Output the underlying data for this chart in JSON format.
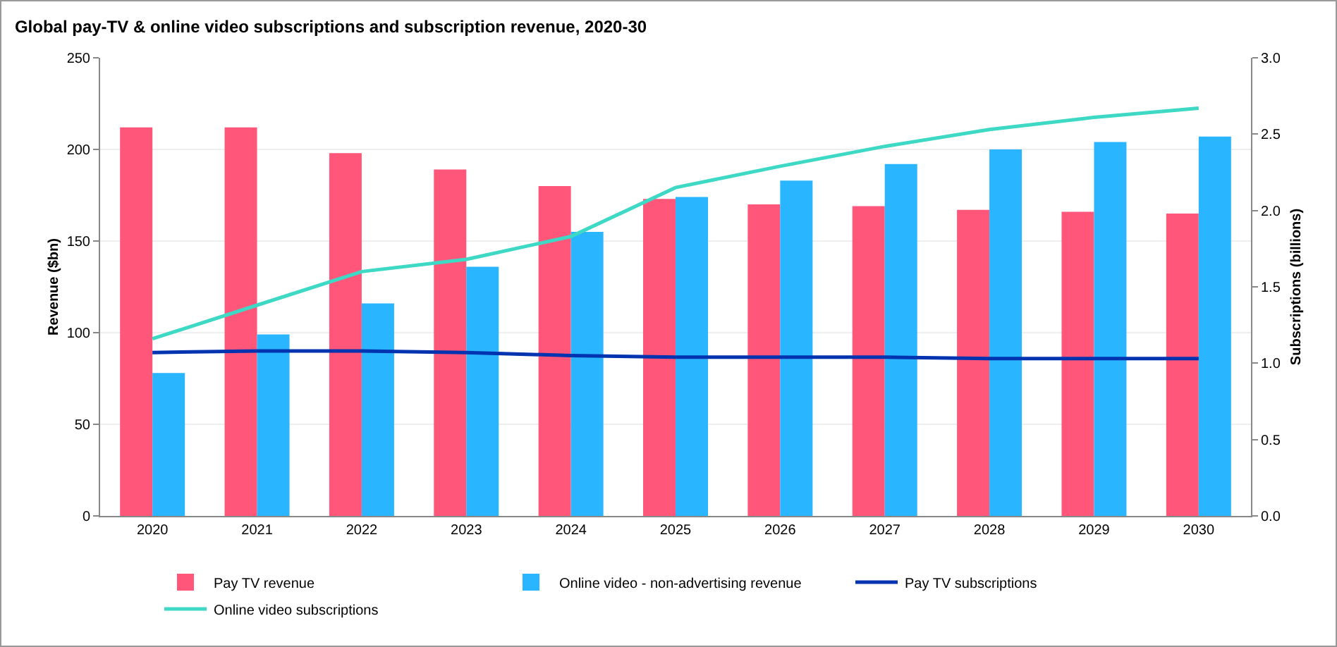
{
  "chart_data": {
    "type": "bar",
    "title": "Global pay-TV & online video subscriptions and subscription revenue, 2020-30",
    "ylabel": "Revenue ($bn)",
    "y2label": "Subscriptions (billions)",
    "categories": [
      "2020",
      "2021",
      "2022",
      "2023",
      "2024",
      "2025",
      "2026",
      "2027",
      "2028",
      "2029",
      "2030"
    ],
    "series": [
      {
        "name": "Pay TV revenue",
        "color": "#ff567a",
        "values": [
          212,
          212,
          198,
          189,
          180,
          173,
          170,
          169,
          167,
          166,
          165
        ]
      },
      {
        "name": "Online video - non-advertising revenue",
        "color": "#29b5ff",
        "values": [
          78,
          99,
          116,
          136,
          155,
          174,
          183,
          192,
          200,
          204,
          207
        ]
      },
      {
        "name": "Pay TV subscriptions",
        "type": "line",
        "axis": "y2",
        "color": "#0033b0",
        "values": [
          1.07,
          1.08,
          1.08,
          1.07,
          1.05,
          1.04,
          1.04,
          1.04,
          1.03,
          1.03,
          1.03
        ]
      },
      {
        "name": "Online video subscriptions",
        "type": "line",
        "axis": "y2",
        "color": "#3dd9c5",
        "values": [
          1.16,
          1.38,
          1.6,
          1.68,
          1.83,
          2.15,
          2.29,
          2.42,
          2.53,
          2.61,
          2.67
        ]
      }
    ],
    "ylim": [
      0,
      250
    ],
    "yticks": [
      0,
      50,
      100,
      150,
      200,
      250
    ],
    "y2lim": [
      0,
      3
    ],
    "y2ticks": [
      {
        "value": 0,
        "label": "0.0"
      },
      {
        "value": 0.5,
        "label": "0.5"
      },
      {
        "value": 1,
        "label": "1.0"
      },
      {
        "value": 1.5,
        "label": "1.5"
      },
      {
        "value": 2,
        "label": "2.0"
      },
      {
        "value": 2.5,
        "label": "2.5"
      },
      {
        "value": 3,
        "label": "3.0"
      }
    ],
    "grid": "y",
    "legend": "bottom",
    "marker": "none",
    "line_style": "solid"
  }
}
